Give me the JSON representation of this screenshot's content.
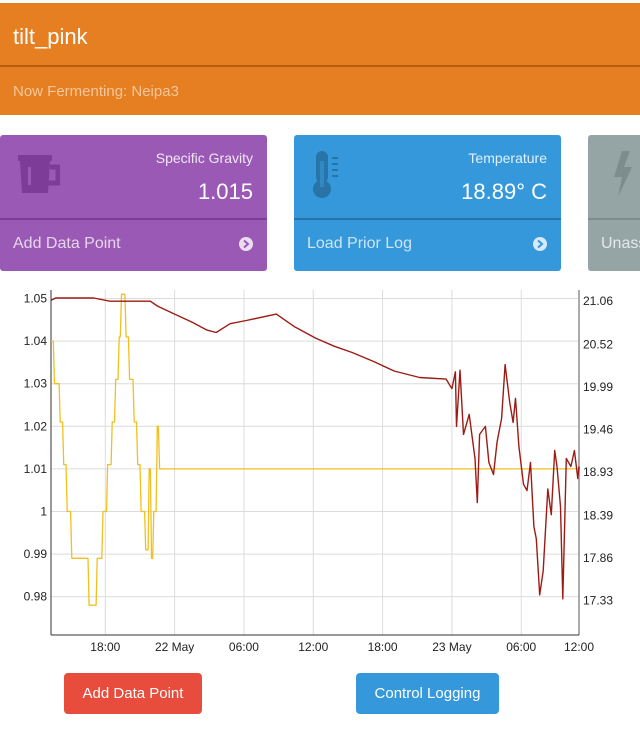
{
  "header": {
    "title": "tilt_pink",
    "subtitle": "Now Fermenting: Neipa3"
  },
  "cards": {
    "gravity": {
      "label": "Specific Gravity",
      "value": "1.015",
      "action": "Add Data Point",
      "icon": "mug-icon",
      "color": "#9b59b6"
    },
    "temperature": {
      "label": "Temperature",
      "value": "18.89° C",
      "action": "Load Prior Log",
      "icon": "thermometer-icon",
      "color": "#3498db"
    },
    "third": {
      "action": "Unass",
      "icon": "bolt-icon",
      "color": "#95a5a6"
    }
  },
  "chart_data": {
    "type": "line",
    "x_ticks": [
      "18:00",
      "22 May",
      "06:00",
      "12:00",
      "18:00",
      "23 May",
      "06:00",
      "12:00"
    ],
    "y_left_ticks": [
      "1.05",
      "1.04",
      "1.03",
      "1.02",
      "1.01",
      "1",
      "0.99",
      "0.98"
    ],
    "y_right_ticks": [
      "21.06",
      "20.52",
      "19.99",
      "19.46",
      "18.93",
      "18.39",
      "17.86",
      "17.33"
    ],
    "y_left_range": [
      0.971,
      1.052
    ],
    "y_right_range": [
      16.9,
      21.2
    ],
    "x_range_hours": [
      -4.7,
      41.0
    ],
    "grid": true,
    "series": [
      {
        "axis": "left",
        "color": "#f0c020",
        "points": [
          [
            -4.7,
            1.04
          ],
          [
            -4.5,
            1.04
          ],
          [
            -4.4,
            1.03
          ],
          [
            -4.0,
            1.03
          ],
          [
            -3.9,
            1.021
          ],
          [
            -3.7,
            1.021
          ],
          [
            -3.6,
            1.011
          ],
          [
            -3.4,
            1.011
          ],
          [
            -3.3,
            1.0
          ],
          [
            -3.0,
            1.0
          ],
          [
            -2.9,
            0.989
          ],
          [
            -1.5,
            0.989
          ],
          [
            -1.4,
            0.978
          ],
          [
            -0.8,
            0.978
          ],
          [
            -0.7,
            0.989
          ],
          [
            -0.3,
            0.989
          ],
          [
            -0.2,
            1.0
          ],
          [
            0.1,
            1.0
          ],
          [
            0.2,
            1.011
          ],
          [
            0.5,
            1.011
          ],
          [
            0.6,
            1.021
          ],
          [
            0.8,
            1.021
          ],
          [
            0.9,
            1.031
          ],
          [
            1.1,
            1.031
          ],
          [
            1.2,
            1.041
          ],
          [
            1.3,
            1.041
          ],
          [
            1.4,
            1.051
          ],
          [
            1.7,
            1.051
          ],
          [
            1.8,
            1.041
          ],
          [
            2.0,
            1.041
          ],
          [
            2.1,
            1.031
          ],
          [
            2.4,
            1.031
          ],
          [
            2.5,
            1.021
          ],
          [
            2.7,
            1.021
          ],
          [
            2.8,
            1.011
          ],
          [
            3.0,
            1.011
          ],
          [
            3.1,
            1.0
          ],
          [
            3.4,
            1.0
          ],
          [
            3.5,
            0.991
          ],
          [
            3.7,
            0.991
          ],
          [
            3.8,
            1.01
          ],
          [
            3.9,
            1.01
          ],
          [
            4.0,
            0.989
          ],
          [
            4.1,
            0.989
          ],
          [
            4.2,
            1.0
          ],
          [
            4.4,
            1.0
          ],
          [
            4.5,
            1.02
          ],
          [
            4.6,
            1.02
          ],
          [
            4.7,
            1.01
          ],
          [
            41.0,
            1.01
          ]
        ]
      },
      {
        "axis": "right",
        "color": "#9b1c14",
        "points": [
          [
            -4.7,
            21.07
          ],
          [
            -4.3,
            21.1
          ],
          [
            -1.0,
            21.1
          ],
          [
            0.4,
            21.06
          ],
          [
            3.9,
            21.06
          ],
          [
            4.5,
            21.0
          ],
          [
            6.0,
            20.9
          ],
          [
            7.5,
            20.8
          ],
          [
            8.8,
            20.7
          ],
          [
            9.6,
            20.67
          ],
          [
            10.8,
            20.78
          ],
          [
            12.2,
            20.82
          ],
          [
            14.8,
            20.9
          ],
          [
            16.4,
            20.74
          ],
          [
            18.2,
            20.6
          ],
          [
            19.8,
            20.5
          ],
          [
            21.4,
            20.42
          ],
          [
            23.2,
            20.31
          ],
          [
            25.0,
            20.19
          ],
          [
            27.2,
            20.11
          ],
          [
            29.5,
            20.09
          ],
          [
            30.0,
            19.97
          ],
          [
            30.3,
            20.18
          ],
          [
            30.4,
            19.5
          ],
          [
            30.7,
            20.2
          ],
          [
            31.0,
            19.4
          ],
          [
            31.5,
            19.65
          ],
          [
            32.0,
            19.1
          ],
          [
            32.2,
            18.55
          ],
          [
            32.4,
            19.4
          ],
          [
            32.9,
            19.5
          ],
          [
            33.2,
            19.05
          ],
          [
            33.6,
            18.9
          ],
          [
            33.9,
            19.3
          ],
          [
            34.3,
            19.6
          ],
          [
            34.6,
            20.27
          ],
          [
            35.0,
            19.8
          ],
          [
            35.3,
            19.55
          ],
          [
            35.5,
            19.85
          ],
          [
            35.8,
            19.25
          ],
          [
            36.2,
            18.78
          ],
          [
            36.5,
            18.7
          ],
          [
            36.8,
            19.05
          ],
          [
            37.1,
            18.25
          ],
          [
            37.3,
            18.1
          ],
          [
            37.6,
            17.4
          ],
          [
            37.9,
            17.7
          ],
          [
            38.3,
            18.72
          ],
          [
            38.6,
            18.4
          ],
          [
            38.9,
            19.2
          ],
          [
            39.1,
            19.0
          ],
          [
            39.4,
            18.5
          ],
          [
            39.6,
            17.35
          ],
          [
            39.9,
            19.1
          ],
          [
            40.3,
            19.0
          ],
          [
            40.6,
            19.2
          ],
          [
            40.9,
            18.85
          ],
          [
            41.0,
            19.0
          ]
        ]
      }
    ]
  },
  "buttons": {
    "add": "Add Data Point",
    "logging": "Control Logging"
  }
}
